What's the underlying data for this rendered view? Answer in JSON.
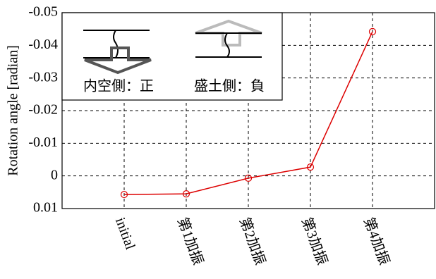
{
  "chart_data": {
    "type": "line",
    "ylabel": "Rotation angle [radian]",
    "categories": [
      "initial",
      "第1加振",
      "第2加振",
      "第3加振",
      "第4加振"
    ],
    "series": [
      {
        "name": "Rotation angle",
        "color": "#dd0000",
        "values": [
          0.0057,
          0.0055,
          0.0007,
          -0.0027,
          -0.0442
        ]
      }
    ],
    "ylim": [
      0.01,
      -0.05
    ],
    "yticks": [
      -0.05,
      -0.04,
      -0.03,
      -0.02,
      -0.01,
      0,
      0.01
    ],
    "grid": true,
    "annotations": [
      "内空側：正",
      "盛土側：負"
    ]
  }
}
